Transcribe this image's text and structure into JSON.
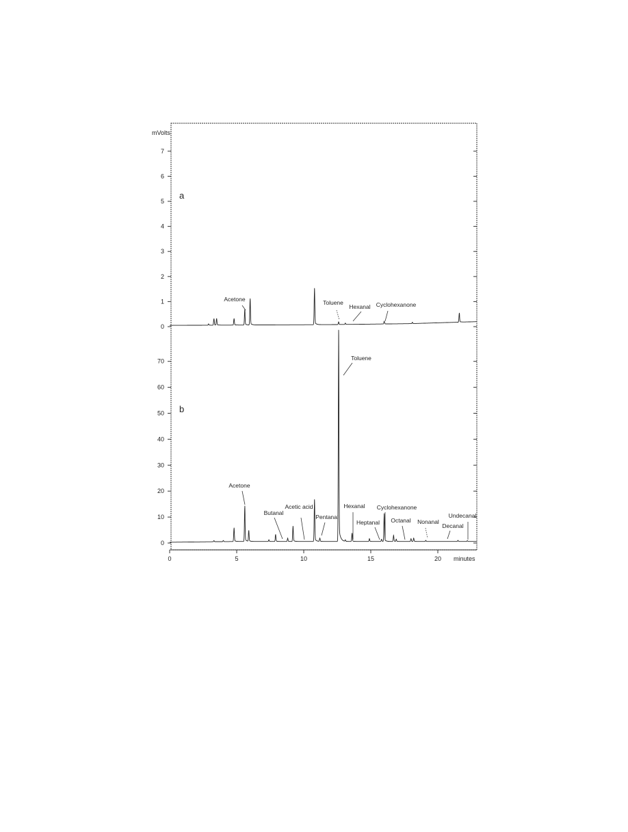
{
  "chart_data": [
    {
      "type": "line",
      "panel_label": "a",
      "ylabel": "mVolts",
      "xlabel": "",
      "xlim": [
        0,
        22.9
      ],
      "ylim": [
        0,
        8
      ],
      "yticks": [
        "0",
        "1",
        "2",
        "3",
        "4",
        "5",
        "6",
        "7"
      ],
      "grid": false,
      "baseline": [
        [
          0,
          0.05
        ],
        [
          12,
          0.08
        ],
        [
          18,
          0.12
        ],
        [
          22.9,
          0.2
        ]
      ],
      "peaks": [
        [
          2.9,
          0.05
        ],
        [
          3.3,
          0.25
        ],
        [
          3.5,
          0.25
        ],
        [
          4.8,
          0.25
        ],
        [
          5.6,
          0.6
        ],
        [
          6.0,
          1.0
        ],
        [
          10.8,
          1.35
        ],
        [
          12.6,
          0.1
        ],
        [
          13.1,
          0.05
        ],
        [
          16.0,
          0.1
        ],
        [
          18.1,
          0.05
        ],
        [
          21.6,
          0.35
        ]
      ],
      "annotations": [
        {
          "label": "Acetone",
          "x": 5.6
        },
        {
          "label": "Toluene",
          "x": 12.6
        },
        {
          "label": "Hexanal",
          "x": 13.1
        },
        {
          "label": "Cyclohexanone",
          "x": 16.0
        }
      ]
    },
    {
      "type": "line",
      "panel_label": "b",
      "xlabel": "minutes",
      "xlim": [
        0,
        22.9
      ],
      "ylim": [
        0,
        78
      ],
      "yticks": [
        "0",
        "10",
        "20",
        "30",
        "40",
        "50",
        "60",
        "70"
      ],
      "xticks": [
        "0",
        "5",
        "10",
        "15",
        "20"
      ],
      "grid": false,
      "baseline": [
        [
          0,
          0.3
        ],
        [
          5,
          0.6
        ],
        [
          22.9,
          0.6
        ]
      ],
      "peaks": [
        [
          3.3,
          0.4
        ],
        [
          4.0,
          0.4
        ],
        [
          4.8,
          5.0
        ],
        [
          5.6,
          13.0
        ],
        [
          5.9,
          4.0
        ],
        [
          7.4,
          0.6
        ],
        [
          7.9,
          2.6
        ],
        [
          8.8,
          1.2
        ],
        [
          9.2,
          5.5
        ],
        [
          10.8,
          15.0
        ],
        [
          11.2,
          1.2
        ],
        [
          12.6,
          75.5
        ],
        [
          13.1,
          0.5
        ],
        [
          13.6,
          3.0
        ],
        [
          14.9,
          1.0
        ],
        [
          15.8,
          0.8
        ],
        [
          16.0,
          10.0
        ],
        [
          16.7,
          2.2
        ],
        [
          16.9,
          0.8
        ],
        [
          18.0,
          1.0
        ],
        [
          18.2,
          1.2
        ],
        [
          19.1,
          0.4
        ],
        [
          21.5,
          0.4
        ],
        [
          22.2,
          0.3
        ]
      ],
      "annotations": [
        {
          "label": "Toluene",
          "x": 12.6
        },
        {
          "label": "Acetone",
          "x": 5.6
        },
        {
          "label": "Butanal",
          "x": 8.3
        },
        {
          "label": "Acetic acid",
          "x": 10.0
        },
        {
          "label": "Pentanal",
          "x": 11.2
        },
        {
          "label": "Hexanal",
          "x": 13.6
        },
        {
          "label": "Heptanal",
          "x": 15.7
        },
        {
          "label": "Cyclohexanone",
          "x": 16.0
        },
        {
          "label": "Octanal",
          "x": 17.5
        },
        {
          "label": "Nonanal",
          "x": 19.1
        },
        {
          "label": "Decanal",
          "x": 20.8
        },
        {
          "label": "Undecanal",
          "x": 22.2
        }
      ]
    }
  ]
}
